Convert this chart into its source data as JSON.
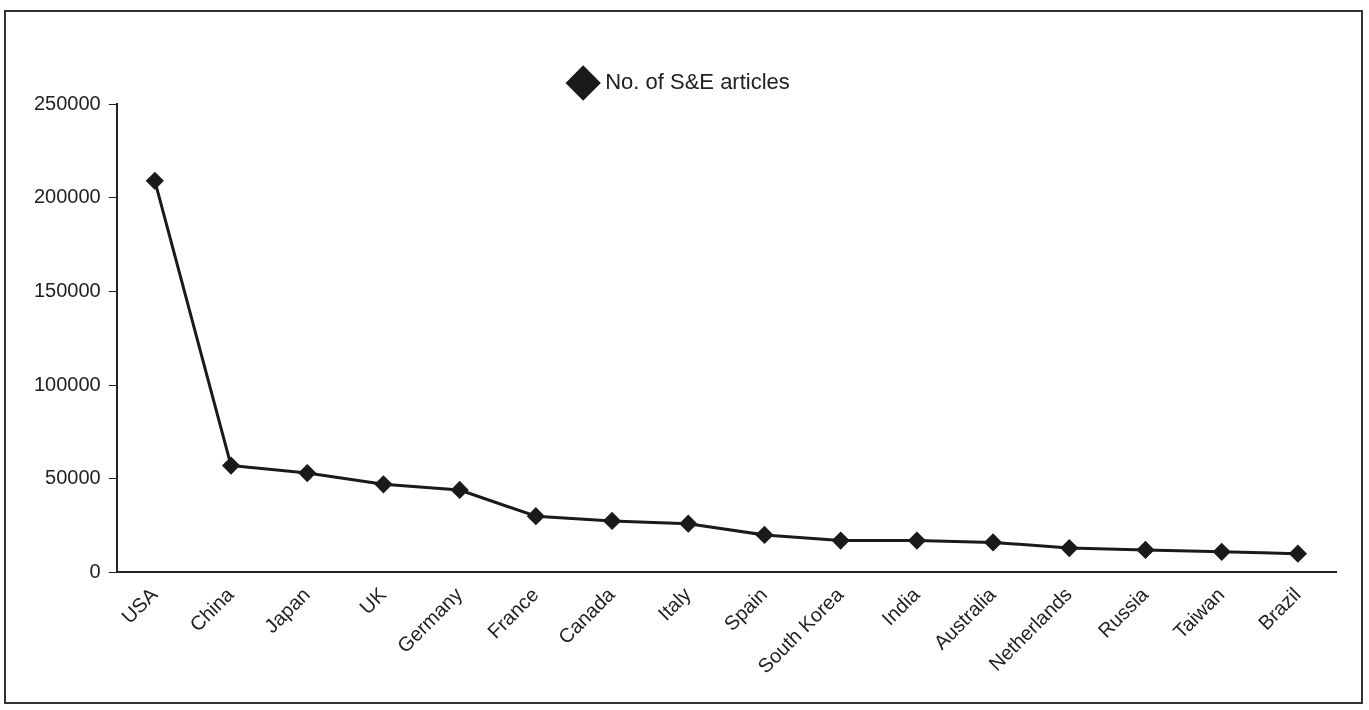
{
  "chart_data": {
    "type": "line",
    "categories": [
      "USA",
      "China",
      "Japan",
      "UK",
      "Germany",
      "France",
      "Canada",
      "Italy",
      "Spain",
      "South Korea",
      "India",
      "Australia",
      "Netherlands",
      "Russia",
      "Taiwan",
      "Brazil"
    ],
    "series": [
      {
        "name": "No. of S&E articles",
        "color": "#1a1a1a",
        "values": [
          209000,
          57000,
          53000,
          47000,
          44000,
          30000,
          27500,
          26000,
          20000,
          17000,
          17000,
          16000,
          13000,
          12000,
          11000,
          10000
        ]
      }
    ],
    "ylim": [
      0,
      250000
    ],
    "yticks": [
      0,
      50000,
      100000,
      150000,
      200000,
      250000
    ],
    "grid": false,
    "legend": "top",
    "marker": "diamond",
    "line_style": "solid"
  }
}
